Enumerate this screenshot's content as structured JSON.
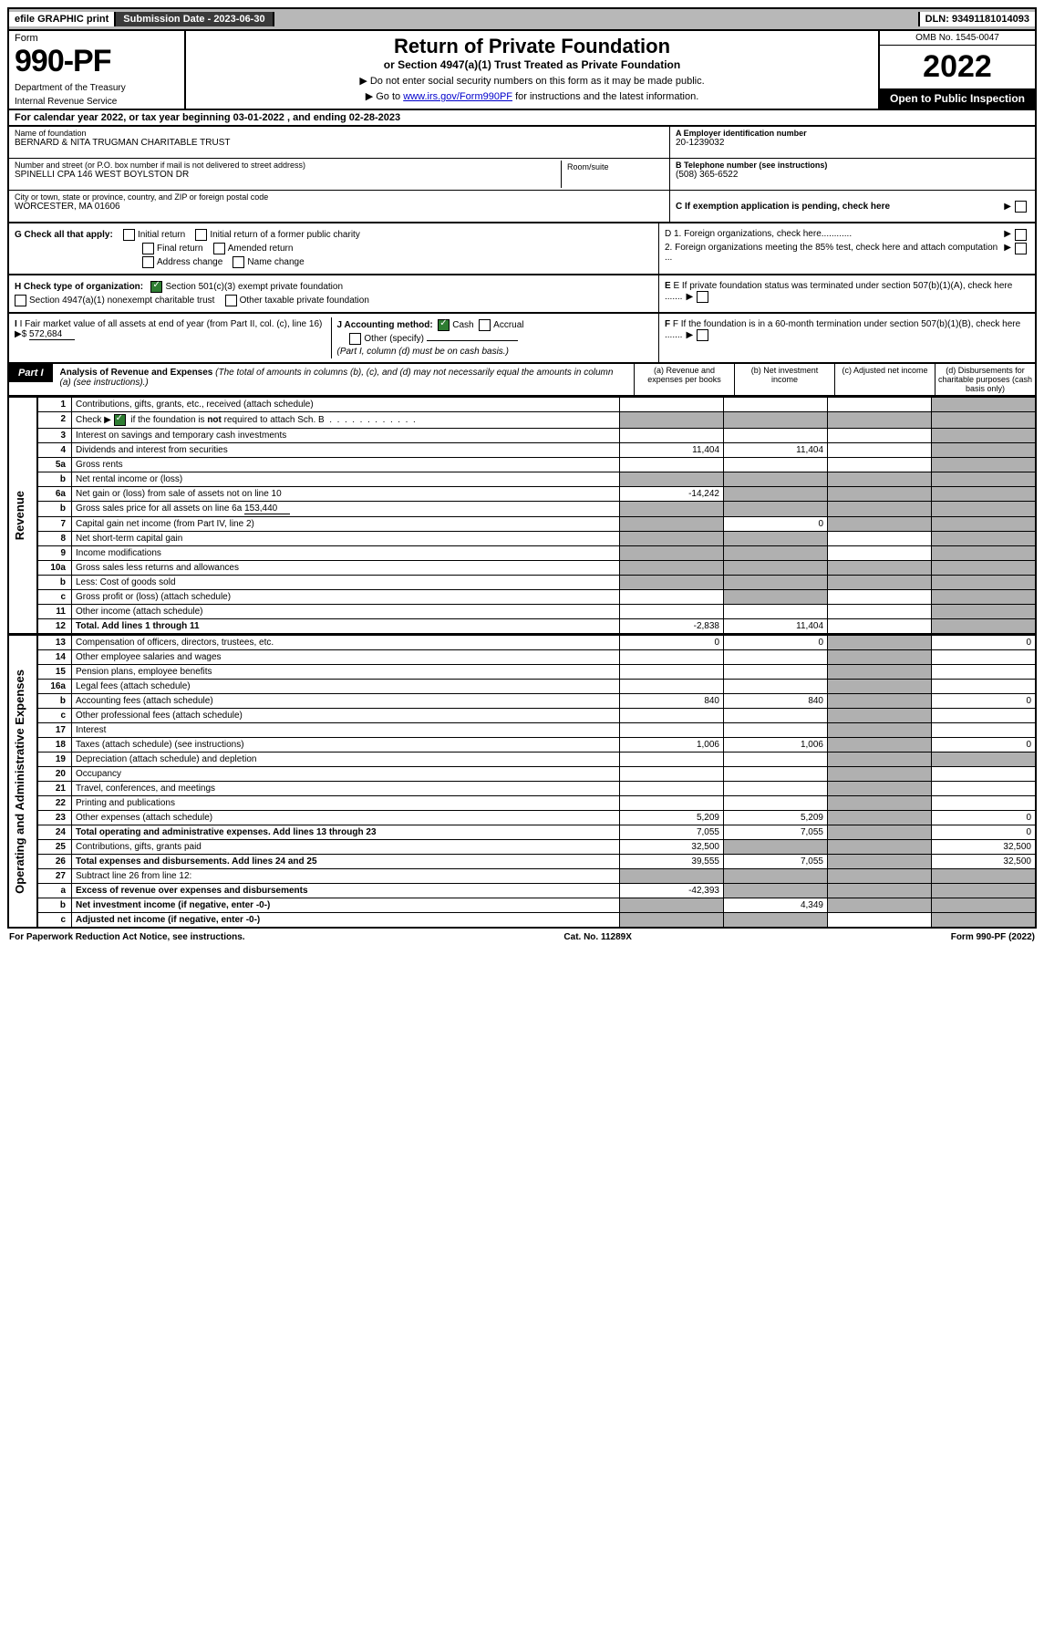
{
  "topbar": {
    "efile": "efile GRAPHIC print",
    "submission": "Submission Date - 2023-06-30",
    "dln": "DLN: 93491181014093"
  },
  "header": {
    "form_word": "Form",
    "form_num": "990-PF",
    "dept": "Department of the Treasury",
    "irs": "Internal Revenue Service",
    "title": "Return of Private Foundation",
    "subtitle": "or Section 4947(a)(1) Trust Treated as Private Foundation",
    "instr1": "▶ Do not enter social security numbers on this form as it may be made public.",
    "instr2": "▶ Go to ",
    "instr2_link": "www.irs.gov/Form990PF",
    "instr2_after": " for instructions and the latest information.",
    "omb": "OMB No. 1545-0047",
    "year": "2022",
    "open": "Open to Public Inspection"
  },
  "cal_year": "For calendar year 2022, or tax year beginning 03-01-2022                              , and ending 02-28-2023",
  "id": {
    "name_label": "Name of foundation",
    "name": "BERNARD & NITA TRUGMAN CHARITABLE TRUST",
    "addr_label": "Number and street (or P.O. box number if mail is not delivered to street address)",
    "addr": "SPINELLI CPA 146 WEST BOYLSTON DR",
    "room_label": "Room/suite",
    "city_label": "City or town, state or province, country, and ZIP or foreign postal code",
    "city": "WORCESTER, MA  01606",
    "a_label": "A Employer identification number",
    "a_val": "20-1239032",
    "b_label": "B Telephone number (see instructions)",
    "b_val": "(508) 365-6522",
    "c_label": "C If exemption application is pending, check here"
  },
  "g": {
    "label": "G Check all that apply:",
    "items": [
      "Initial return",
      "Initial return of a former public charity",
      "Final return",
      "Amended return",
      "Address change",
      "Name change"
    ]
  },
  "h": {
    "label": "H Check type of organization:",
    "a": "Section 501(c)(3) exempt private foundation",
    "b": "Section 4947(a)(1) nonexempt charitable trust",
    "c": "Other taxable private foundation"
  },
  "i": {
    "label": "I Fair market value of all assets at end of year (from Part II, col. (c), line 16)",
    "val": "572,684"
  },
  "j": {
    "label": "J Accounting method:",
    "cash": "Cash",
    "accrual": "Accrual",
    "other": "Other (specify)",
    "note": "(Part I, column (d) must be on cash basis.)"
  },
  "d": {
    "d1": "D 1. Foreign organizations, check here............",
    "d2": "2. Foreign organizations meeting the 85% test, check here and attach computation ..."
  },
  "e_label": "E  If private foundation status was terminated under section 507(b)(1)(A), check here .......",
  "f_label": "F  If the foundation is in a 60-month termination under section 507(b)(1)(B), check here .......",
  "part1": {
    "label": "Part I",
    "title": "Analysis of Revenue and Expenses",
    "title_note": "(The total of amounts in columns (b), (c), and (d) may not necessarily equal the amounts in column (a) (see instructions).)",
    "cols": {
      "a": "(a)  Revenue and expenses per books",
      "b": "(b)  Net investment income",
      "c": "(c)  Adjusted net income",
      "d": "(d)  Disbursements for charitable purposes (cash basis only)"
    }
  },
  "sections": {
    "revenue": "Revenue",
    "expenses": "Operating and Administrative Expenses"
  },
  "rows": [
    {
      "n": "1",
      "d": "Contributions, gifts, grants, etc., received (attach schedule)",
      "a": "",
      "b": "",
      "c_shade": false,
      "d_shade": true
    },
    {
      "n": "2",
      "d": "Check ▶ ☑ if the foundation is not required to attach Sch. B",
      "a_shade": true,
      "b_shade": true,
      "c_shade": true,
      "d_shade": true,
      "checked": true
    },
    {
      "n": "3",
      "d": "Interest on savings and temporary cash investments",
      "a": "",
      "b": "",
      "c": "",
      "d_shade": true
    },
    {
      "n": "4",
      "d": "Dividends and interest from securities",
      "a": "11,404",
      "b": "11,404",
      "c": "",
      "d_shade": true
    },
    {
      "n": "5a",
      "d": "Gross rents",
      "a": "",
      "b": "",
      "c": "",
      "d_shade": true
    },
    {
      "n": "b",
      "d": "Net rental income or (loss)",
      "a_shade": true,
      "b_shade": true,
      "c_shade": true,
      "d_shade": true,
      "field": true
    },
    {
      "n": "6a",
      "d": "Net gain or (loss) from sale of assets not on line 10",
      "a": "-14,242",
      "b_shade": true,
      "c_shade": true,
      "d_shade": true
    },
    {
      "n": "b",
      "d": "Gross sales price for all assets on line 6a",
      "inline": "153,440",
      "a_shade": true,
      "b_shade": true,
      "c_shade": true,
      "d_shade": true
    },
    {
      "n": "7",
      "d": "Capital gain net income (from Part IV, line 2)",
      "a_shade": true,
      "b": "0",
      "c_shade": true,
      "d_shade": true
    },
    {
      "n": "8",
      "d": "Net short-term capital gain",
      "a_shade": true,
      "b_shade": true,
      "c": "",
      "d_shade": true
    },
    {
      "n": "9",
      "d": "Income modifications",
      "a_shade": true,
      "b_shade": true,
      "c": "",
      "d_shade": true
    },
    {
      "n": "10a",
      "d": "Gross sales less returns and allowances",
      "a_shade": true,
      "b_shade": true,
      "c_shade": true,
      "d_shade": true,
      "field": true
    },
    {
      "n": "b",
      "d": "Less: Cost of goods sold",
      "a_shade": true,
      "b_shade": true,
      "c_shade": true,
      "d_shade": true,
      "field": true
    },
    {
      "n": "c",
      "d": "Gross profit or (loss) (attach schedule)",
      "a": "",
      "b_shade": true,
      "c": "",
      "d_shade": true
    },
    {
      "n": "11",
      "d": "Other income (attach schedule)",
      "a": "",
      "b": "",
      "c": "",
      "d_shade": true
    },
    {
      "n": "12",
      "d": "Total. Add lines 1 through 11",
      "a": "-2,838",
      "b": "11,404",
      "c": "",
      "d_shade": true,
      "bold": true
    }
  ],
  "exp_rows": [
    {
      "n": "13",
      "d": "Compensation of officers, directors, trustees, etc.",
      "a": "0",
      "b": "0",
      "c_shade": true,
      "dd": "0"
    },
    {
      "n": "14",
      "d": "Other employee salaries and wages",
      "a": "",
      "b": "",
      "c_shade": true,
      "dd": ""
    },
    {
      "n": "15",
      "d": "Pension plans, employee benefits",
      "a": "",
      "b": "",
      "c_shade": true,
      "dd": ""
    },
    {
      "n": "16a",
      "d": "Legal fees (attach schedule)",
      "a": "",
      "b": "",
      "c_shade": true,
      "dd": ""
    },
    {
      "n": "b",
      "d": "Accounting fees (attach schedule)",
      "a": "840",
      "b": "840",
      "c_shade": true,
      "dd": "0"
    },
    {
      "n": "c",
      "d": "Other professional fees (attach schedule)",
      "a": "",
      "b": "",
      "c_shade": true,
      "dd": ""
    },
    {
      "n": "17",
      "d": "Interest",
      "a": "",
      "b": "",
      "c_shade": true,
      "dd": ""
    },
    {
      "n": "18",
      "d": "Taxes (attach schedule) (see instructions)",
      "a": "1,006",
      "b": "1,006",
      "c_shade": true,
      "dd": "0"
    },
    {
      "n": "19",
      "d": "Depreciation (attach schedule) and depletion",
      "a": "",
      "b": "",
      "c_shade": true,
      "d_shade": true
    },
    {
      "n": "20",
      "d": "Occupancy",
      "a": "",
      "b": "",
      "c_shade": true,
      "dd": ""
    },
    {
      "n": "21",
      "d": "Travel, conferences, and meetings",
      "a": "",
      "b": "",
      "c_shade": true,
      "dd": ""
    },
    {
      "n": "22",
      "d": "Printing and publications",
      "a": "",
      "b": "",
      "c_shade": true,
      "dd": ""
    },
    {
      "n": "23",
      "d": "Other expenses (attach schedule)",
      "a": "5,209",
      "b": "5,209",
      "c_shade": true,
      "dd": "0"
    },
    {
      "n": "24",
      "d": "Total operating and administrative expenses. Add lines 13 through 23",
      "a": "7,055",
      "b": "7,055",
      "c_shade": true,
      "dd": "0",
      "bold": true
    },
    {
      "n": "25",
      "d": "Contributions, gifts, grants paid",
      "a": "32,500",
      "b_shade": true,
      "c_shade": true,
      "dd": "32,500"
    },
    {
      "n": "26",
      "d": "Total expenses and disbursements. Add lines 24 and 25",
      "a": "39,555",
      "b": "7,055",
      "c_shade": true,
      "dd": "32,500",
      "bold": true
    },
    {
      "n": "27",
      "d": "Subtract line 26 from line 12:",
      "a_shade": true,
      "b_shade": true,
      "c_shade": true,
      "d_shade": true
    },
    {
      "n": "a",
      "d": "Excess of revenue over expenses and disbursements",
      "a": "-42,393",
      "b_shade": true,
      "c_shade": true,
      "d_shade": true,
      "bold": true
    },
    {
      "n": "b",
      "d": "Net investment income (if negative, enter -0-)",
      "a_shade": true,
      "b": "4,349",
      "c_shade": true,
      "d_shade": true,
      "bold": true
    },
    {
      "n": "c",
      "d": "Adjusted net income (if negative, enter -0-)",
      "a_shade": true,
      "b_shade": true,
      "c": "",
      "d_shade": true,
      "bold": true
    }
  ],
  "footer": {
    "left": "For Paperwork Reduction Act Notice, see instructions.",
    "mid": "Cat. No. 11289X",
    "right": "Form 990-PF (2022)"
  }
}
